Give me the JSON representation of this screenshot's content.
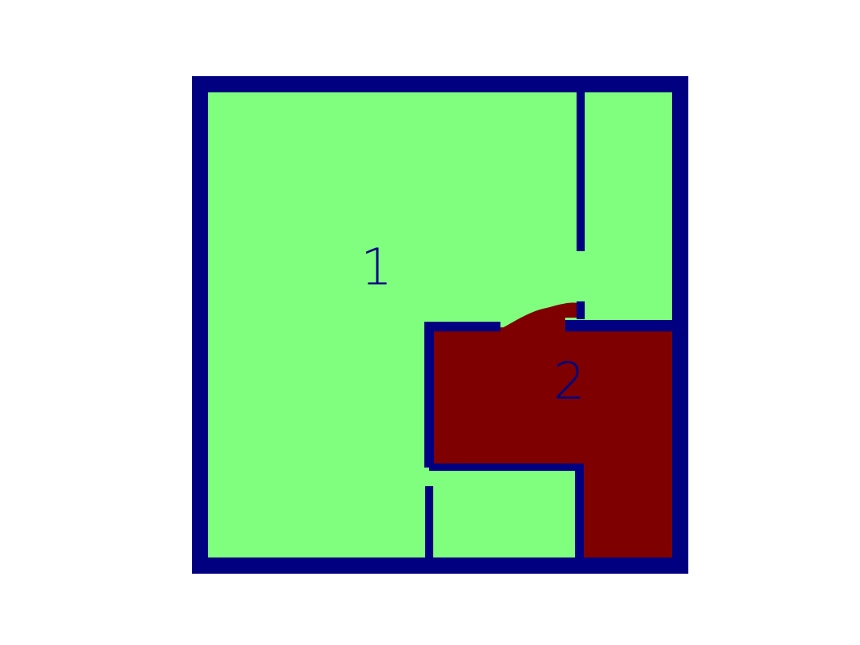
{
  "diagram": {
    "regions": [
      {
        "id": "1",
        "label": "1",
        "color": "#80ff7f"
      },
      {
        "id": "2",
        "label": "2",
        "color": "#7f0000"
      }
    ],
    "wall_color": "#000080",
    "label_color": "#000080",
    "background_color": "#ffffff"
  }
}
